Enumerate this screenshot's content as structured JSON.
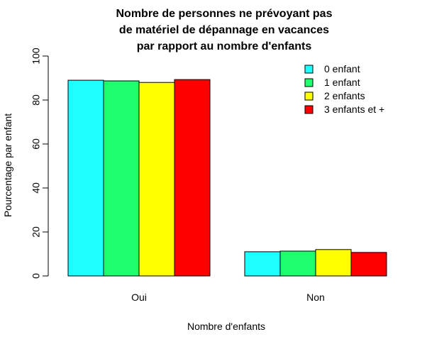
{
  "chart_data": {
    "type": "bar",
    "title": [
      "Nombre de personnes ne prévoyant pas",
      "de matériel de dépannage en vacances",
      "par rapport au nombre d'enfants"
    ],
    "xlabel": "Nombre d'enfants",
    "ylabel": "Pourcentage par enfant",
    "categories": [
      "Oui",
      "Non"
    ],
    "ylim": [
      0,
      100
    ],
    "yticks": [
      0,
      20,
      40,
      60,
      80,
      100
    ],
    "grid": false,
    "legend_position": "top-right",
    "series": [
      {
        "name": "0 enfant",
        "color": "#1effff",
        "values": [
          89.0,
          11.0
        ]
      },
      {
        "name": "1 enfant",
        "color": "#1eff6e",
        "values": [
          88.7,
          11.3
        ]
      },
      {
        "name": "2 enfants",
        "color": "#ffff00",
        "values": [
          88.0,
          12.0
        ]
      },
      {
        "name": "3 enfants et +",
        "color": "#ff0000",
        "values": [
          89.3,
          10.7
        ]
      }
    ]
  }
}
